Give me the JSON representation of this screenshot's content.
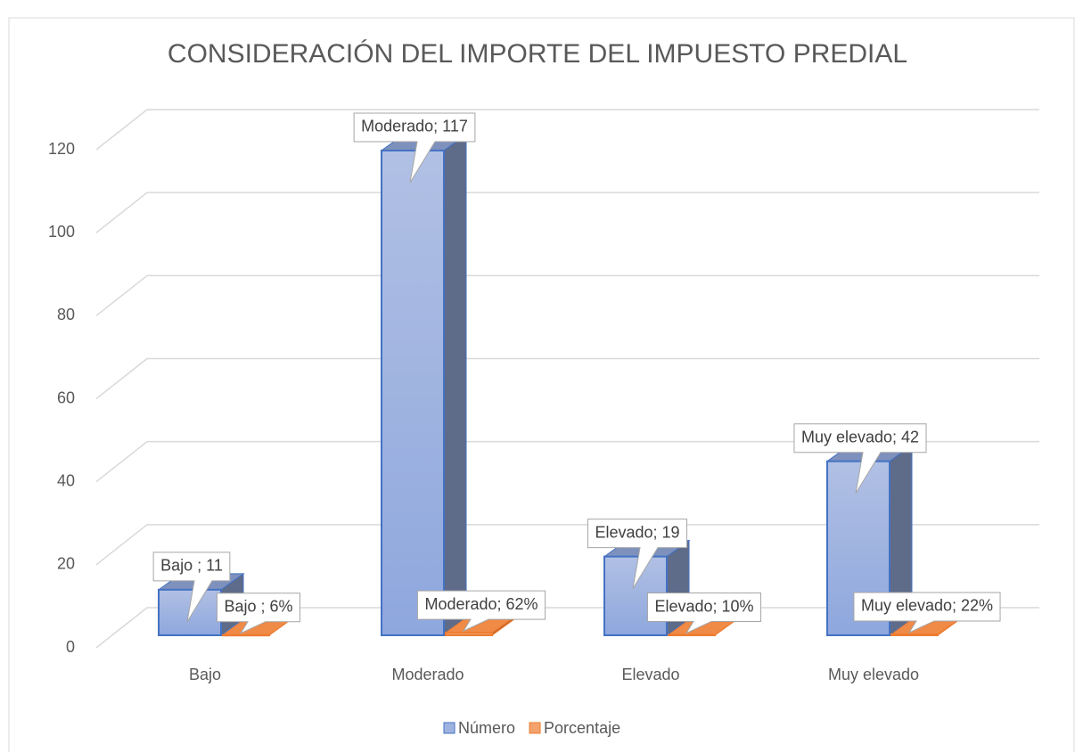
{
  "chart_data": {
    "type": "bar",
    "title": "CONSIDERACIÓN DEL IMPORTE DEL IMPUESTO PREDIAL",
    "categories": [
      "Bajo",
      "Moderado",
      "Elevado",
      "Muy elevado"
    ],
    "series": [
      {
        "name": "Número",
        "color": "#4472c4",
        "values": [
          11,
          117,
          19,
          42
        ],
        "value_labels": [
          "Bajo ; 11",
          "Moderado; 117",
          "Elevado; 19",
          "Muy elevado; 42"
        ]
      },
      {
        "name": "Porcentaje",
        "color": "#ed7d31",
        "values": [
          0.06,
          0.62,
          0.1,
          0.22
        ],
        "value_labels": [
          "Bajo ; 6%",
          "Moderado; 62%",
          "Elevado; 10%",
          "Muy elevado; 22%"
        ]
      }
    ],
    "ylim": [
      0,
      120
    ],
    "yticks": [
      0,
      20,
      40,
      60,
      80,
      100,
      120
    ],
    "grid": true,
    "legend": "bottom"
  }
}
